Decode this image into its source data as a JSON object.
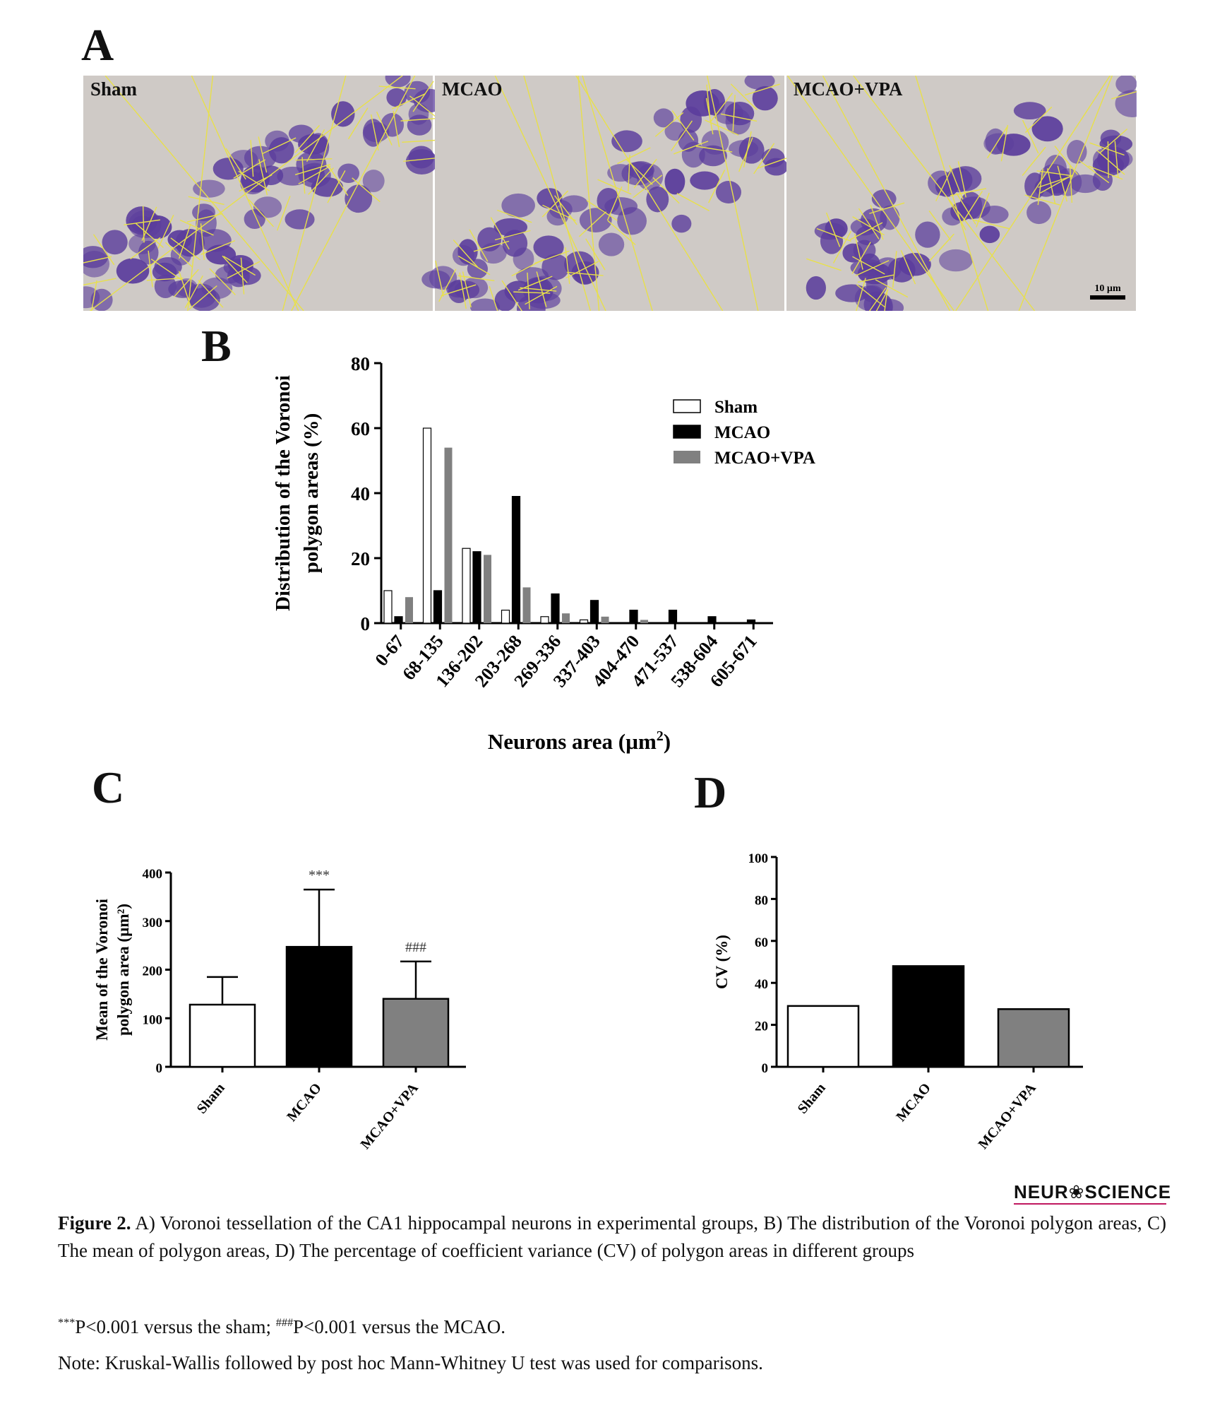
{
  "panel_letters": {
    "a": "A",
    "b": "B",
    "c": "C",
    "d": "D"
  },
  "micrographs": {
    "labels": [
      "Sham",
      "MCAO",
      "MCAO+VPA"
    ],
    "scale_bar": "10 µm",
    "colors": {
      "background": "#cfcac6",
      "stain": "#5b3d9c",
      "lines": "#e8e04a"
    }
  },
  "chart_data": [
    {
      "type": "bar",
      "panel": "B",
      "categories": [
        "0-67",
        "68-135",
        "136-202",
        "203-268",
        "269-336",
        "337-403",
        "404-470",
        "471-537",
        "538-604",
        "605-671"
      ],
      "series": [
        {
          "name": "Sham",
          "values": [
            10,
            60,
            23,
            4,
            2,
            1,
            0,
            0,
            0,
            0
          ],
          "color": "#ffffff"
        },
        {
          "name": "MCAO",
          "values": [
            2,
            10,
            22,
            39,
            9,
            7,
            4,
            4,
            2,
            1
          ],
          "color": "#000000"
        },
        {
          "name": "MCAO+VPA",
          "values": [
            8,
            54,
            21,
            11,
            3,
            2,
            1,
            0,
            0,
            0
          ],
          "color": "#808080"
        }
      ],
      "ylabel": "Distribution of the Voronoi polygon areas (%)",
      "ylabel_lines": [
        "Distribution of the Voronoi",
        "polygon areas (%)"
      ],
      "xlabel": "Neurons area (µm²)",
      "xlabel_text": "Neurons area (µm",
      "xlabel_sup": "2",
      "xlabel_close": ")",
      "ylim": [
        0,
        80
      ],
      "yticks": [
        0,
        20,
        40,
        60,
        80
      ],
      "legend": "top-right"
    },
    {
      "type": "bar",
      "panel": "C",
      "categories": [
        "Sham",
        "MCAO",
        "MCAO+VPA"
      ],
      "values": [
        128,
        247,
        140
      ],
      "errors": [
        57,
        118,
        77
      ],
      "colors": [
        "#ffffff",
        "#000000",
        "#808080"
      ],
      "annotations": [
        "",
        "***",
        "###"
      ],
      "ylabel_lines": [
        "Mean of the Voronoi",
        "polygon area (µm²)"
      ],
      "ylim": [
        0,
        400
      ],
      "yticks": [
        0,
        100,
        200,
        300,
        400
      ]
    },
    {
      "type": "bar",
      "panel": "D",
      "categories": [
        "Sham",
        "MCAO",
        "MCAO+VPA"
      ],
      "values": [
        29,
        48,
        27.5
      ],
      "colors": [
        "#ffffff",
        "#000000",
        "#808080"
      ],
      "ylabel": "CV (%)",
      "ylim": [
        0,
        100
      ],
      "yticks": [
        0,
        20,
        40,
        60,
        80,
        100
      ]
    }
  ],
  "caption": {
    "figure_label": "Figure 2.",
    "text": " A) Voronoi tessellation of the CA1 hippocampal neurons in experimental groups, B) The distribution of the Voronoi polygon areas, C) The mean of polygon areas, D) The percentage of coefficient variance (CV) of polygon areas in different groups",
    "sig_sup1": "***",
    "sig_text1": "P<0.001 versus the sham; ",
    "sig_sup2": "###",
    "sig_text2": "P<0.001 versus the MCAO.",
    "note": "Note: Kruskal-Wallis followed by post hoc Mann-Whitney U test was used for comparisons."
  },
  "logo": "NEUR❀SCIENCE"
}
